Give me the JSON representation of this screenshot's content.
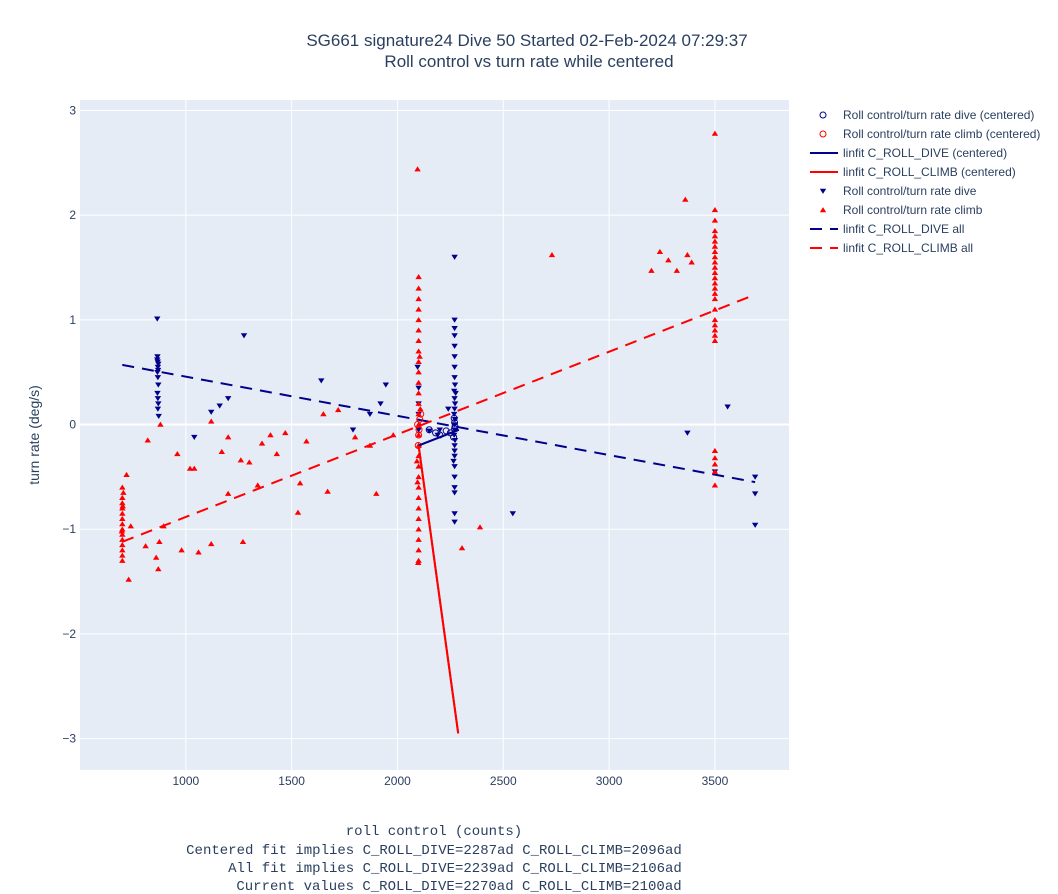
{
  "chart_data": {
    "type": "scatter",
    "title_line1": "SG661 signature24 Dive 50 Started 02-Feb-2024 07:29:37",
    "title_line2": "Roll control vs turn rate while centered",
    "xlabel_lines": [
      "roll control (counts)",
      "Centered fit implies C_ROLL_DIVE=2287ad C_ROLL_CLIMB=2096ad",
      "All fit implies C_ROLL_DIVE=2239ad C_ROLL_CLIMB=2106ad",
      "Current values C_ROLL_DIVE=2270ad C_ROLL_CLIMB=2100ad"
    ],
    "ylabel": "turn rate (deg/s)",
    "xlim": [
      500,
      3850
    ],
    "ylim": [
      -3.3,
      3.1
    ],
    "x_ticks": [
      1000,
      1500,
      2000,
      2500,
      3000,
      3500
    ],
    "x_tick_labels": [
      "1000",
      "1500",
      "2000",
      "2500",
      "3000",
      "3500"
    ],
    "y_ticks": [
      -3,
      -2,
      -1,
      0,
      1,
      2,
      3
    ],
    "y_tick_labels": [
      "−3",
      "−2",
      "−1",
      "0",
      "1",
      "2",
      "3"
    ],
    "grid": true,
    "legend_position": "right",
    "colors": {
      "plot_bg": "#e5ecf6",
      "grid": "#ffffff",
      "dive": "#00008b",
      "climb": "#ff0000"
    },
    "series": [
      {
        "name": "Roll control/turn rate dive (centered)",
        "kind": "marker",
        "marker": "circle-open",
        "color": "#00008b",
        "points": [
          [
            2150,
            -0.05
          ],
          [
            2180,
            -0.08
          ],
          [
            2200,
            -0.1
          ],
          [
            2230,
            -0.06
          ],
          [
            2250,
            -0.08
          ],
          [
            2270,
            -0.04
          ],
          [
            2270,
            0.02
          ],
          [
            2265,
            -0.12
          ],
          [
            2268,
            0.06
          ],
          [
            2272,
            -0.02
          ]
        ]
      },
      {
        "name": "Roll control/turn rate climb (centered)",
        "kind": "marker",
        "marker": "circle-open",
        "color": "#ff0000",
        "points": [
          [
            2100,
            -0.1
          ],
          [
            2105,
            0.05
          ],
          [
            2098,
            -0.2
          ],
          [
            2110,
            0.1
          ],
          [
            2102,
            -0.05
          ],
          [
            2095,
            0.0
          ]
        ]
      },
      {
        "name": "linfit C_ROLL_DIVE (centered)",
        "kind": "line",
        "dash": "solid",
        "color": "#00008b",
        "points": [
          [
            2100,
            -0.2
          ],
          [
            2290,
            -0.05
          ]
        ]
      },
      {
        "name": "linfit C_ROLL_CLIMB (centered)",
        "kind": "line",
        "dash": "solid",
        "color": "#ff0000",
        "points": [
          [
            2100,
            -0.2
          ],
          [
            2287,
            -2.95
          ]
        ]
      },
      {
        "name": "Roll control/turn rate dive",
        "kind": "marker",
        "marker": "triangle-down",
        "color": "#00008b",
        "points": [
          [
            865,
            1.01
          ],
          [
            866,
            0.65
          ],
          [
            867,
            0.6
          ],
          [
            868,
            0.55
          ],
          [
            866,
            0.5
          ],
          [
            868,
            0.45
          ],
          [
            870,
            0.38
          ],
          [
            866,
            0.3
          ],
          [
            868,
            0.25
          ],
          [
            870,
            0.2
          ],
          [
            868,
            0.15
          ],
          [
            872,
            0.08
          ],
          [
            865,
            0.62
          ],
          [
            870,
            0.58
          ],
          [
            869,
            0.52
          ],
          [
            1040,
            -0.12
          ],
          [
            1120,
            0.12
          ],
          [
            1160,
            0.18
          ],
          [
            1200,
            0.25
          ],
          [
            1275,
            0.85
          ],
          [
            1640,
            0.42
          ],
          [
            1790,
            -0.05
          ],
          [
            1870,
            0.1
          ],
          [
            1920,
            0.2
          ],
          [
            1945,
            0.38
          ],
          [
            2100,
            0.2
          ],
          [
            2100,
            0.35
          ],
          [
            2100,
            0.1
          ],
          [
            2100,
            -0.05
          ],
          [
            2095,
            0.55
          ],
          [
            2270,
            1.6
          ],
          [
            2270,
            1.0
          ],
          [
            2270,
            0.92
          ],
          [
            2270,
            0.85
          ],
          [
            2270,
            0.75
          ],
          [
            2270,
            0.65
          ],
          [
            2270,
            0.55
          ],
          [
            2270,
            0.45
          ],
          [
            2272,
            0.38
          ],
          [
            2268,
            0.32
          ],
          [
            2270,
            0.25
          ],
          [
            2272,
            0.2
          ],
          [
            2270,
            0.15
          ],
          [
            2268,
            0.1
          ],
          [
            2272,
            0.05
          ],
          [
            2270,
            0.0
          ],
          [
            2270,
            -0.05
          ],
          [
            2268,
            -0.1
          ],
          [
            2272,
            -0.15
          ],
          [
            2270,
            -0.2
          ],
          [
            2270,
            -0.25
          ],
          [
            2270,
            -0.3
          ],
          [
            2270,
            -0.4
          ],
          [
            2270,
            -0.5
          ],
          [
            2270,
            -0.6
          ],
          [
            2270,
            -0.65
          ],
          [
            2270,
            -0.85
          ],
          [
            2270,
            -0.93
          ],
          [
            2275,
            0.3
          ],
          [
            2265,
            -0.35
          ],
          [
            2200,
            -0.05
          ],
          [
            2150,
            -0.06
          ],
          [
            2190,
            -0.1
          ],
          [
            2240,
            0.15
          ],
          [
            2545,
            -0.85
          ],
          [
            3370,
            -0.08
          ],
          [
            3500,
            -0.45
          ],
          [
            3560,
            0.17
          ],
          [
            3690,
            -0.5
          ],
          [
            3690,
            -0.66
          ],
          [
            3690,
            -0.96
          ]
        ]
      },
      {
        "name": "Roll control/turn rate climb",
        "kind": "marker",
        "marker": "triangle-up",
        "color": "#ff0000",
        "points": [
          [
            700,
            -0.6
          ],
          [
            700,
            -0.7
          ],
          [
            700,
            -0.75
          ],
          [
            700,
            -0.8
          ],
          [
            700,
            -0.85
          ],
          [
            700,
            -0.9
          ],
          [
            700,
            -0.95
          ],
          [
            700,
            -1.0
          ],
          [
            700,
            -1.05
          ],
          [
            700,
            -1.1
          ],
          [
            700,
            -1.15
          ],
          [
            700,
            -1.2
          ],
          [
            700,
            -1.25
          ],
          [
            700,
            -1.3
          ],
          [
            705,
            -0.65
          ],
          [
            702,
            -0.78
          ],
          [
            698,
            -1.02
          ],
          [
            720,
            -0.48
          ],
          [
            730,
            -1.48
          ],
          [
            740,
            -0.97
          ],
          [
            810,
            -1.16
          ],
          [
            820,
            -0.15
          ],
          [
            860,
            -1.27
          ],
          [
            870,
            -1.38
          ],
          [
            875,
            -1.12
          ],
          [
            895,
            -0.97
          ],
          [
            880,
            0.0
          ],
          [
            960,
            -0.28
          ],
          [
            980,
            -1.2
          ],
          [
            1020,
            -0.42
          ],
          [
            1040,
            -0.42
          ],
          [
            1060,
            -1.22
          ],
          [
            1120,
            -1.14
          ],
          [
            1120,
            0.03
          ],
          [
            1170,
            -0.26
          ],
          [
            1200,
            -0.66
          ],
          [
            1200,
            -0.12
          ],
          [
            1260,
            -0.34
          ],
          [
            1270,
            -1.12
          ],
          [
            1300,
            -0.36
          ],
          [
            1340,
            -0.58
          ],
          [
            1360,
            -0.18
          ],
          [
            1400,
            -0.1
          ],
          [
            1430,
            -0.28
          ],
          [
            1470,
            -0.08
          ],
          [
            1530,
            -0.84
          ],
          [
            1540,
            -0.56
          ],
          [
            1570,
            -0.16
          ],
          [
            1650,
            0.1
          ],
          [
            1670,
            -0.64
          ],
          [
            1720,
            0.14
          ],
          [
            1800,
            -0.12
          ],
          [
            1870,
            -0.2
          ],
          [
            1900,
            -0.66
          ],
          [
            1980,
            -0.1
          ],
          [
            2095,
            2.44
          ],
          [
            2100,
            1.41
          ],
          [
            2100,
            1.3
          ],
          [
            2100,
            1.2
          ],
          [
            2100,
            1.1
          ],
          [
            2100,
            1.0
          ],
          [
            2100,
            0.9
          ],
          [
            2100,
            0.8
          ],
          [
            2100,
            0.7
          ],
          [
            2100,
            0.6
          ],
          [
            2100,
            0.5
          ],
          [
            2100,
            0.4
          ],
          [
            2100,
            0.3
          ],
          [
            2100,
            0.2
          ],
          [
            2100,
            0.1
          ],
          [
            2100,
            0.0
          ],
          [
            2100,
            -0.1
          ],
          [
            2100,
            -0.2
          ],
          [
            2100,
            -0.3
          ],
          [
            2100,
            -0.4
          ],
          [
            2100,
            -0.5
          ],
          [
            2100,
            -0.6
          ],
          [
            2100,
            -0.7
          ],
          [
            2100,
            -0.8
          ],
          [
            2100,
            -0.9
          ],
          [
            2100,
            -1.0
          ],
          [
            2100,
            -1.1
          ],
          [
            2100,
            -1.2
          ],
          [
            2100,
            -1.3
          ],
          [
            2098,
            -1.32
          ],
          [
            2105,
            0.65
          ],
          [
            2095,
            -0.55
          ],
          [
            2108,
            0.15
          ],
          [
            2092,
            -0.35
          ],
          [
            2305,
            -1.18
          ],
          [
            2390,
            -0.98
          ],
          [
            2730,
            1.62
          ],
          [
            3200,
            1.47
          ],
          [
            3240,
            1.65
          ],
          [
            3280,
            1.57
          ],
          [
            3320,
            1.47
          ],
          [
            3360,
            2.15
          ],
          [
            3370,
            1.62
          ],
          [
            3390,
            1.55
          ],
          [
            3500,
            2.78
          ],
          [
            3500,
            2.05
          ],
          [
            3500,
            1.95
          ],
          [
            3500,
            1.85
          ],
          [
            3500,
            1.8
          ],
          [
            3500,
            1.75
          ],
          [
            3500,
            1.7
          ],
          [
            3500,
            1.65
          ],
          [
            3500,
            1.6
          ],
          [
            3500,
            1.55
          ],
          [
            3500,
            1.5
          ],
          [
            3500,
            1.45
          ],
          [
            3500,
            1.4
          ],
          [
            3500,
            1.35
          ],
          [
            3500,
            1.3
          ],
          [
            3500,
            1.25
          ],
          [
            3500,
            1.2
          ],
          [
            3500,
            1.1
          ],
          [
            3500,
            1.0
          ],
          [
            3500,
            0.95
          ],
          [
            3500,
            0.9
          ],
          [
            3500,
            0.85
          ],
          [
            3500,
            0.8
          ],
          [
            3500,
            -0.25
          ],
          [
            3500,
            -0.32
          ],
          [
            3500,
            -0.38
          ],
          [
            3500,
            -0.45
          ],
          [
            3500,
            -0.58
          ]
        ]
      },
      {
        "name": "linfit C_ROLL_DIVE all",
        "kind": "line",
        "dash": "dash",
        "color": "#00008b",
        "points": [
          [
            700,
            0.57
          ],
          [
            3690,
            -0.55
          ]
        ]
      },
      {
        "name": "linfit C_ROLL_CLIMB all",
        "kind": "line",
        "dash": "dash",
        "color": "#ff0000",
        "points": [
          [
            700,
            -1.12
          ],
          [
            3690,
            1.24
          ]
        ]
      }
    ]
  }
}
